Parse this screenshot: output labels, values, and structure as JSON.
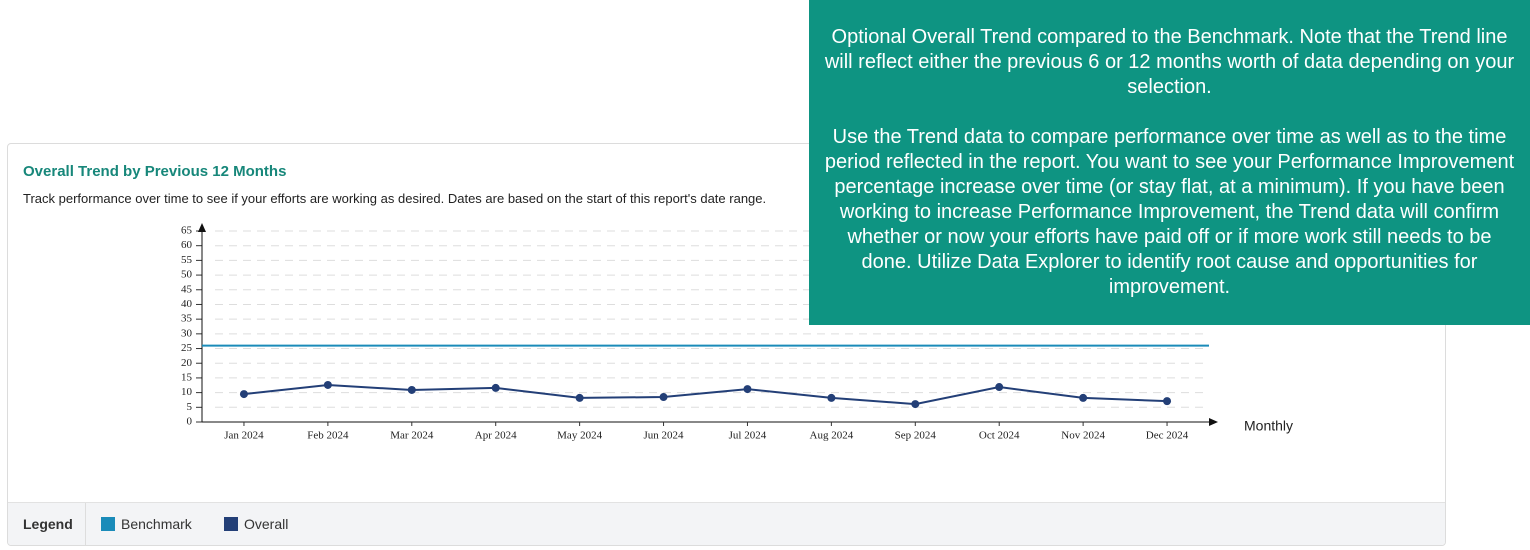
{
  "chart_data": {
    "type": "line",
    "title": "Overall Trend by Previous 12 Months",
    "subtitle": "Track performance over time to see if your efforts are working as desired. Dates are based on the start of this report's date range.",
    "x_label": "Monthly",
    "categories": [
      "Jan 2024",
      "Feb 2024",
      "Mar 2024",
      "Apr 2024",
      "May 2024",
      "Jun 2024",
      "Jul 2024",
      "Aug 2024",
      "Sep 2024",
      "Oct 2024",
      "Nov 2024",
      "Dec 2024"
    ],
    "series": [
      {
        "name": "Benchmark",
        "color": "#1a8bb9",
        "value": 26
      },
      {
        "name": "Overall",
        "color": "#233f77",
        "values": [
          9.5,
          12.6,
          10.9,
          11.6,
          8.2,
          8.5,
          11.2,
          8.2,
          6.1,
          11.9,
          8.2,
          7.1
        ]
      }
    ],
    "ylim": [
      0,
      65
    ],
    "yticks": [
      0,
      5,
      10,
      15,
      20,
      25,
      30,
      35,
      40,
      45,
      50,
      55,
      60,
      65
    ],
    "grid": true,
    "legend_title": "Legend"
  },
  "tooltip": {
    "paragraphs": [
      "Optional Overall Trend compared to the Benchmark. Note that the Trend line will reflect either the previous 6 or 12 months worth of data depending on your selection.",
      "Use the Trend data to compare performance over time as well as to the time period reflected in the report. You want to see your Performance Improvement percentage increase over time (or stay flat, at a minimum). If you have been working to increase Performance Improvement, the Trend data will confirm whether or now your efforts have paid off or if more work still needs to be done. Utilize Data Explorer to identify root cause and opportunities for improvement."
    ]
  }
}
